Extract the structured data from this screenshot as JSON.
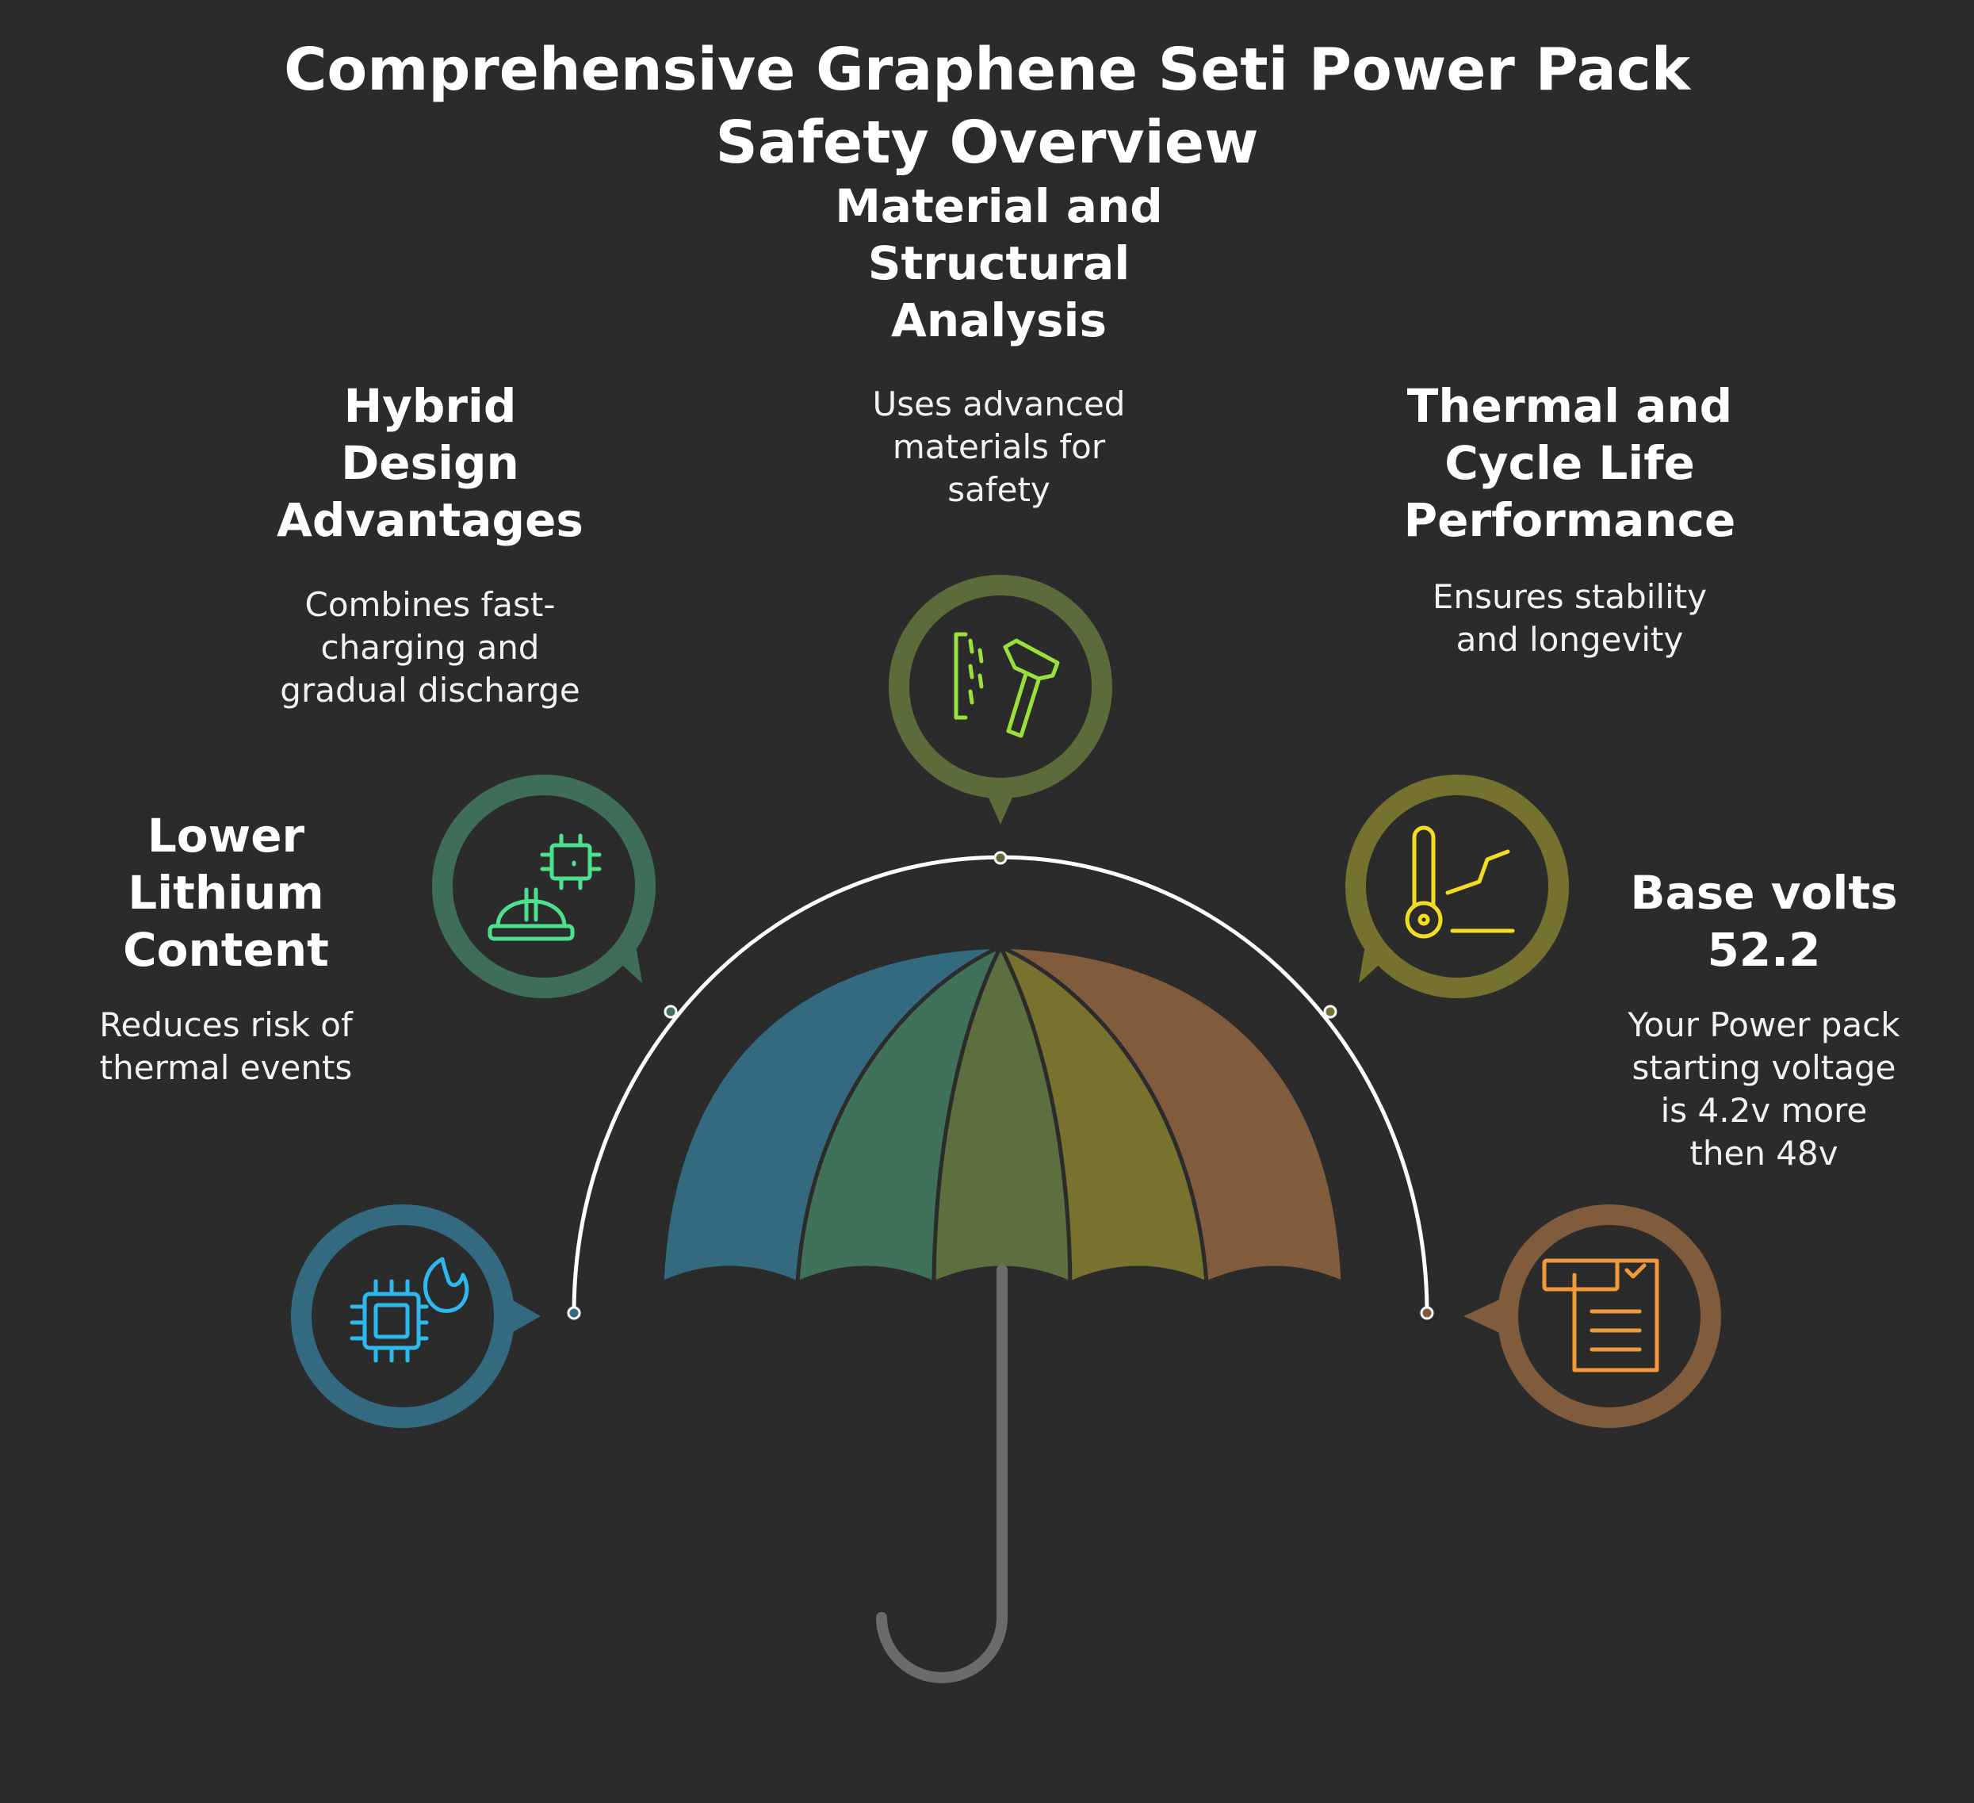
{
  "title": {
    "line1": "Comprehensive Graphene Seti Power Pack",
    "line2": "Safety Overview"
  },
  "items": [
    {
      "id": "material",
      "heading": [
        "Material and",
        "Structural",
        "Analysis"
      ],
      "description": [
        "Uses advanced",
        "materials for",
        "safety"
      ],
      "color": "#5c6b3a",
      "icon_color": "#9be03a",
      "icon": "hammer-chisel-icon"
    },
    {
      "id": "hybrid",
      "heading": [
        "Hybrid",
        "Design",
        "Advantages"
      ],
      "description": [
        "Combines fast-",
        "charging and",
        "gradual discharge"
      ],
      "color": "#3f6e58",
      "icon_color": "#4ee08e",
      "icon": "chip-hardhat-icon"
    },
    {
      "id": "thermal",
      "heading": [
        "Thermal and",
        "Cycle Life",
        "Performance"
      ],
      "description": [
        "Ensures stability",
        "and longevity"
      ],
      "color": "#75722f",
      "icon_color": "#f2dd22",
      "icon": "thermometer-graph-icon"
    },
    {
      "id": "lithium",
      "heading": [
        "Lower",
        "Lithium",
        "Content"
      ],
      "description": [
        "Reduces risk of",
        "thermal events"
      ],
      "color": "#336a80",
      "icon_color": "#2db8ee",
      "icon": "chip-flame-icon"
    },
    {
      "id": "volts",
      "heading": [
        "Base volts",
        "52.2"
      ],
      "description": [
        "Your Power pack",
        "starting voltage",
        "is 4.2v more",
        "then 48v"
      ],
      "color": "#805c3c",
      "icon_color": "#f09a3a",
      "icon": "document-check-icon"
    }
  ],
  "umbrella": {
    "panel_colors": [
      "#336a80",
      "#3f7258",
      "#5c6f3e",
      "#77732f",
      "#805c3c"
    ],
    "handle_color": "#6b6b6b",
    "arc_color": "#ffffff"
  }
}
